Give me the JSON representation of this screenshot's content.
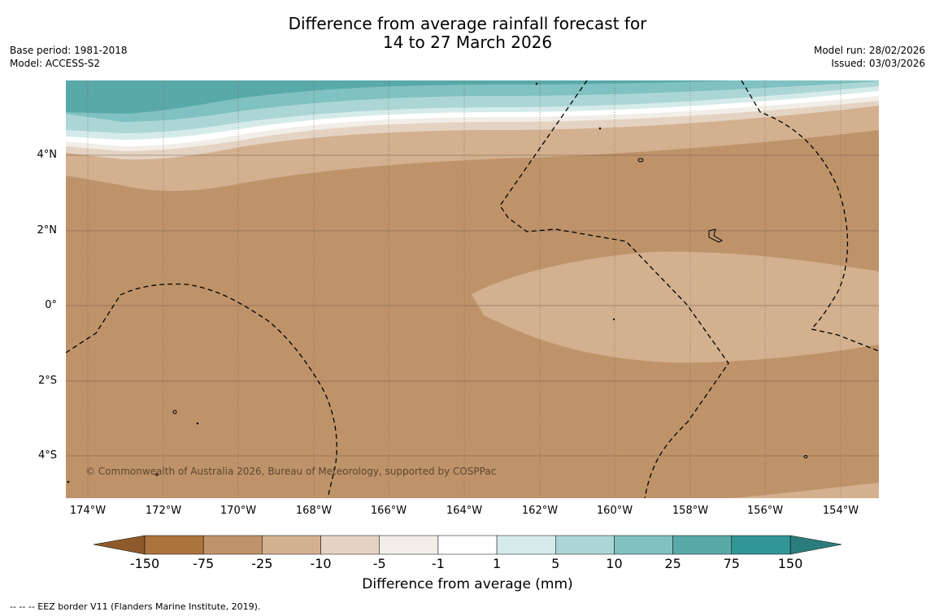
{
  "title": {
    "line1": "Difference from average rainfall forecast for",
    "line2": "14 to 27 March 2026"
  },
  "meta_left": {
    "base_period": "Base period: 1981-2018",
    "model": "Model: ACCESS-S2"
  },
  "meta_right": {
    "model_run": "Model run: 28/02/2026",
    "issued": "Issued: 03/03/2026"
  },
  "map": {
    "lat_labels": [
      "4°N",
      "2°N",
      "0°",
      "2°S",
      "4°S"
    ],
    "lon_labels": [
      "174°W",
      "172°W",
      "170°W",
      "168°W",
      "166°W",
      "164°W",
      "162°W",
      "160°W",
      "158°W",
      "156°W",
      "154°W"
    ],
    "copyright": "© Commonwealth of Australia 2026, Bureau of Meteorology, supported by COSPPac"
  },
  "colorbar": {
    "ticks": [
      "-150",
      "-75",
      "-25",
      "-10",
      "-5",
      "-1",
      "1",
      "5",
      "10",
      "25",
      "75",
      "150"
    ],
    "colors": [
      "#a9743d",
      "#bf936a",
      "#d3b08f",
      "#e4d3c3",
      "#f2eee7",
      "#ffffff",
      "#d5ebea",
      "#acd6d6",
      "#80c1c1",
      "#5aa9a9",
      "#339696"
    ],
    "under_color": "#8e5a2b",
    "over_color": "#2b7d7d",
    "label": "Difference from average (mm)"
  },
  "footer": {
    "legend": "--  --  -- EEZ border V11 (Flanders Marine Institute, 2019)."
  }
}
